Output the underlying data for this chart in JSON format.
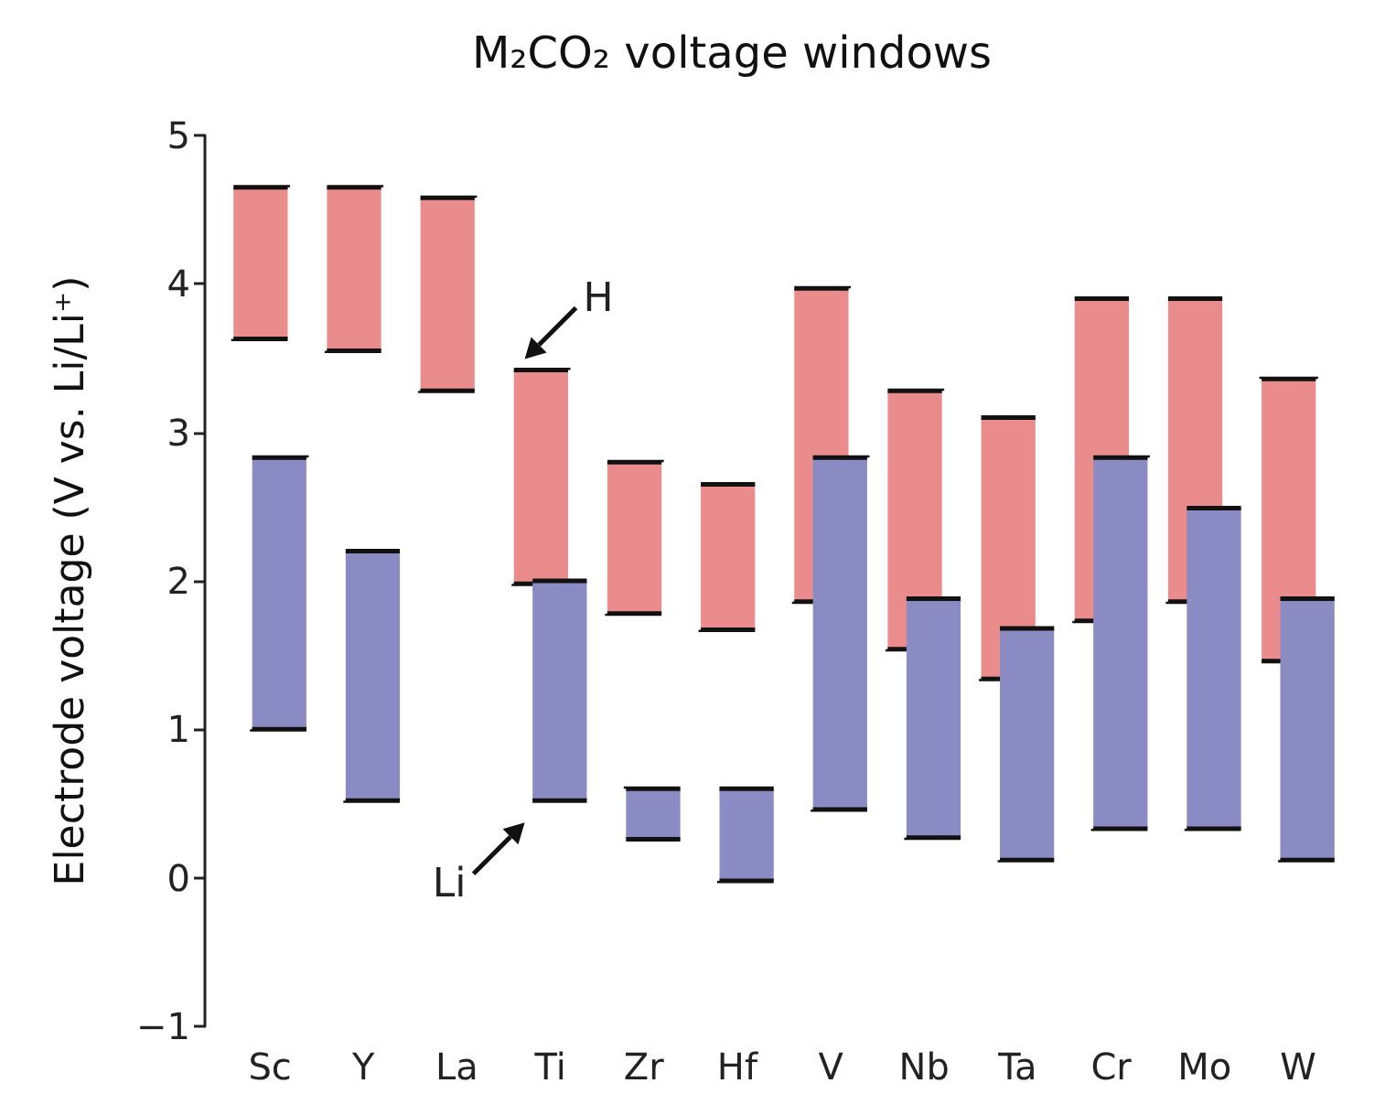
{
  "chart_data": {
    "type": "bar",
    "title": "M₂CO₂ voltage windows",
    "ylabel": "Electrode voltage (V vs. Li/Li⁺)",
    "categories": [
      "Sc",
      "Y",
      "La",
      "Ti",
      "Zr",
      "Hf",
      "V",
      "Nb",
      "Ta",
      "Cr",
      "Mo",
      "W"
    ],
    "series": [
      {
        "color": "#eb8c8c",
        "base": [
          3.63,
          3.55,
          3.28,
          1.98,
          1.78,
          1.67,
          1.86,
          1.54,
          1.34,
          1.73,
          1.86,
          1.46
        ],
        "values": [
          1.02,
          1.1,
          1.3,
          1.44,
          1.02,
          0.98,
          2.11,
          1.74,
          1.76,
          2.17,
          2.04,
          1.9
        ]
      },
      {
        "color": "#8a8bc3",
        "base": [
          1.0,
          0.52,
          null,
          0.52,
          0.26,
          -0.02,
          0.46,
          0.27,
          0.12,
          0.33,
          0.33,
          0.12
        ],
        "values": [
          1.83,
          1.68,
          null,
          1.48,
          0.34,
          0.62,
          2.37,
          1.61,
          1.56,
          2.5,
          2.16,
          1.76
        ]
      }
    ],
    "annotations": [
      {
        "text": "H",
        "x": "Ti",
        "y": 3.42
      },
      {
        "text": "Li",
        "x": "Ti",
        "y": 0.52
      }
    ],
    "ylim": [
      -1,
      5
    ],
    "yticks": [
      -1,
      0,
      1,
      2,
      3,
      4,
      5
    ],
    "grid": false
  }
}
